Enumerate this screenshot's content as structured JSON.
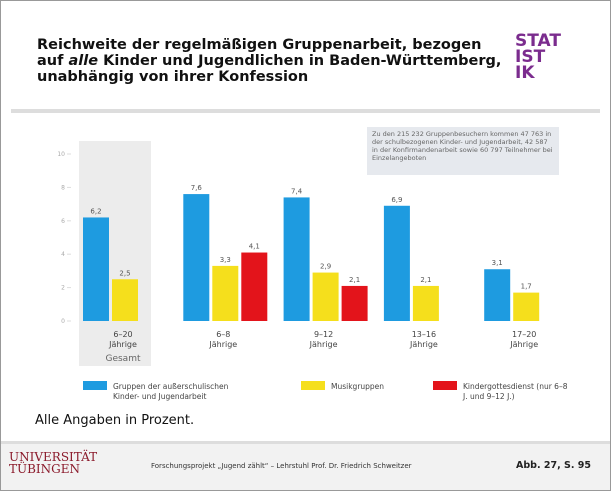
{
  "slide": {
    "title_lines": [
      "Reichweite der regelmäßigen Gruppenarbeit, bezogen",
      "auf",
      "alle",
      "Kinder und Jugendlichen in Baden-Württemberg,",
      "unabhängig von ihrer Konfession"
    ],
    "logo": [
      "STAT",
      "IST",
      "IK"
    ],
    "note": "Alle Angaben in Prozent.",
    "university": [
      "UNIVERSITÄT",
      "TÜBINGEN"
    ],
    "footer": "Forschungsprojekt „Jugend zählt“ – Lehrstuhl Prof. Dr. Friedrich Schweitzer",
    "figure_ref": "Abb. 27, S. 95"
  },
  "chart_data": {
    "type": "bar",
    "categories": [
      "6–20 Jährige",
      "6–8 Jährige",
      "9–12 Jährige",
      "13–16 Jährige",
      "17–20 Jährige"
    ],
    "highlight_label": "Gesamt",
    "annotation": "Zu den 215 232 Gruppenbesuchern kommen 47 763 in der schulbezogenen Kinder- und Jugendarbeit, 42 587 in der Konfirmandenarbeit sowie 60 797 Teilnehmer bei Einzelangeboten",
    "series": [
      {
        "name": "Gruppen der außerschulischen Kinder- und Jugendarbeit",
        "color": "#1e9be0",
        "values": [
          6.2,
          7.6,
          7.4,
          6.9,
          3.1
        ],
        "value_labels": [
          "6,2",
          "7,6",
          "7,4",
          "6,9",
          "3,1"
        ]
      },
      {
        "name": "Musikgruppen",
        "color": "#f5df1c",
        "values": [
          2.5,
          3.3,
          2.9,
          2.1,
          1.7
        ],
        "value_labels": [
          "2,5",
          "3,3",
          "2,9",
          "2,1",
          "1,7"
        ]
      },
      {
        "name": "Kindergottesdienst (nur 6–8 J. und 9–12 J.)",
        "color": "#e3141b",
        "values": [
          null,
          4.1,
          2.1,
          null,
          null
        ],
        "value_labels": [
          null,
          "4,1",
          "2,1",
          null,
          null
        ]
      }
    ],
    "ylim": [
      0,
      10
    ],
    "yticks": [
      0,
      2,
      4,
      6,
      8,
      10
    ],
    "grid": false
  }
}
